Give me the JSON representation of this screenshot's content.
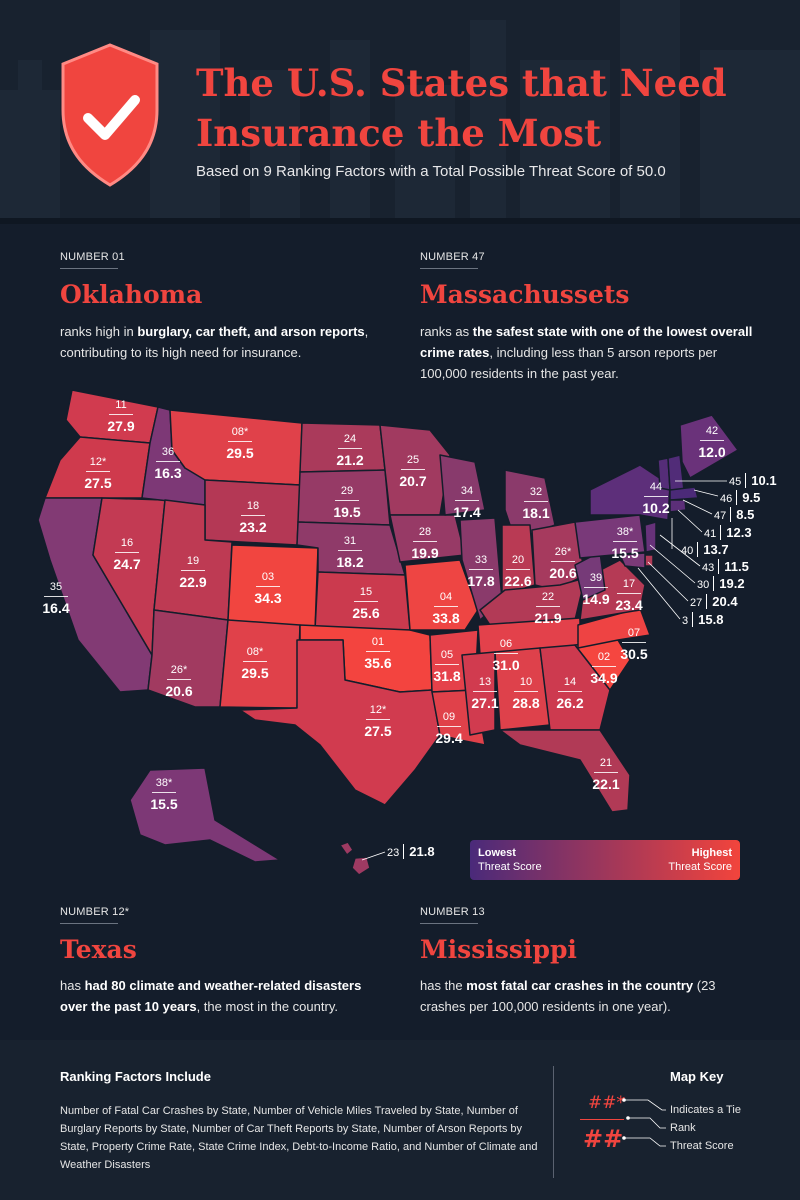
{
  "header": {
    "title": "The U.S. States that Need Insurance the Most",
    "subtitle": "Based on 9 Ranking Factors with a Total Possible Threat Score of 50.0"
  },
  "highlights": [
    {
      "number": "NUMBER 01",
      "state": "Oklahoma",
      "before": "ranks high in ",
      "bold": "burglary, car theft, and arson reports",
      "after": ", contributing to its high need for insurance."
    },
    {
      "number": "NUMBER 47",
      "state": "Massachussets",
      "before": "ranks as ",
      "bold": "the safest state with one of the lowest overall crime rates",
      "after": ", including less than 5 arson reports per 100,000 residents in the past year."
    },
    {
      "number": "NUMBER 12*",
      "state": "Texas",
      "before": "has ",
      "bold": "had 80 climate and weather-related disasters over the past 10 years",
      "after": ", the most in the country."
    },
    {
      "number": "NUMBER 13",
      "state": "Mississippi",
      "before": "has the ",
      "bold": "most fatal car crashes in the country",
      "after": " (23 crashes per 100,000 residents in one year)."
    }
  ],
  "map": {
    "labels": [
      {
        "rank": "11",
        "score": "27.9"
      },
      {
        "rank": "12*",
        "score": "27.5"
      },
      {
        "rank": "35",
        "score": "16.4"
      },
      {
        "rank": "36",
        "score": "16.3"
      },
      {
        "rank": "16",
        "score": "24.7"
      },
      {
        "rank": "08*",
        "score": "29.5"
      },
      {
        "rank": "18",
        "score": "23.2"
      },
      {
        "rank": "19",
        "score": "22.9"
      },
      {
        "rank": "03",
        "score": "34.3"
      },
      {
        "rank": "26*",
        "score": "20.6"
      },
      {
        "rank": "08*",
        "score": "29.5"
      },
      {
        "rank": "24",
        "score": "21.2"
      },
      {
        "rank": "29",
        "score": "19.5"
      },
      {
        "rank": "31",
        "score": "18.2"
      },
      {
        "rank": "15",
        "score": "25.6"
      },
      {
        "rank": "01",
        "score": "35.6"
      },
      {
        "rank": "12*",
        "score": "27.5"
      },
      {
        "rank": "25",
        "score": "20.7"
      },
      {
        "rank": "28",
        "score": "19.9"
      },
      {
        "rank": "04",
        "score": "33.8"
      },
      {
        "rank": "05",
        "score": "31.8"
      },
      {
        "rank": "34",
        "score": "17.4"
      },
      {
        "rank": "33",
        "score": "17.8"
      },
      {
        "rank": "32",
        "score": "18.1"
      },
      {
        "rank": "20",
        "score": "22.6"
      },
      {
        "rank": "26*",
        "score": "20.6"
      },
      {
        "rank": "22",
        "score": "21.9"
      },
      {
        "rank": "06",
        "score": "31.0"
      },
      {
        "rank": "13",
        "score": "27.1"
      },
      {
        "rank": "10",
        "score": "28.8"
      },
      {
        "rank": "09",
        "score": "29.4"
      },
      {
        "rank": "14",
        "score": "26.2"
      },
      {
        "rank": "02",
        "score": "34.9"
      },
      {
        "rank": "07",
        "score": "30.5"
      },
      {
        "rank": "17",
        "score": "23.4"
      },
      {
        "rank": "39",
        "score": "14.9"
      },
      {
        "rank": "38*",
        "score": "15.5"
      },
      {
        "rank": "44",
        "score": "10.2"
      },
      {
        "rank": "42",
        "score": "12.0"
      },
      {
        "rank": "21",
        "score": "22.1"
      },
      {
        "rank": "38*",
        "score": "15.5"
      }
    ],
    "callouts": [
      {
        "rank": "45",
        "score": "10.1"
      },
      {
        "rank": "46",
        "score": "9.5"
      },
      {
        "rank": "47",
        "score": "8.5"
      },
      {
        "rank": "41",
        "score": "12.3"
      },
      {
        "rank": "40",
        "score": "13.7"
      },
      {
        "rank": "43",
        "score": "11.5"
      },
      {
        "rank": "30",
        "score": "19.2"
      },
      {
        "rank": "27",
        "score": "20.4"
      },
      {
        "rank": "3",
        "score": "15.8"
      },
      {
        "rank": "23",
        "score": "21.8"
      }
    ],
    "legend": {
      "low_1": "Lowest",
      "low_2": "Threat Score",
      "high_1": "Highest",
      "high_2": "Threat Score",
      "low_color": "#4a2a7a",
      "high_color": "#f2443c"
    }
  },
  "footer": {
    "factors_heading": "Ranking Factors Include",
    "factors_text": "Number of Fatal Car Crashes by State, Number of Vehicle Miles Traveled by State, Number of Burglary Reports by State, Number of Car Theft Reports by State, Number of Arson Reports by State, Property Crime Rate, State Crime Index, Debt-to-Income Ratio, and Number of Climate and Weather Disasters",
    "key_heading": "Map Key",
    "key_symbol_top": "##*",
    "key_symbol_bottom": "##",
    "key_items": [
      "Indicates a Tie",
      "Rank",
      "Threat Score"
    ]
  }
}
